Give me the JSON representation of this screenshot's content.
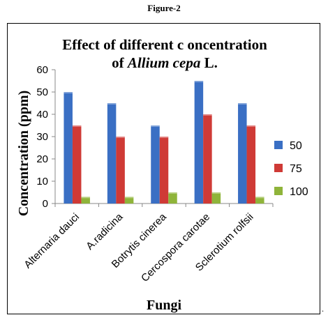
{
  "figure_label": "Figure-2",
  "trailing_mark": ".",
  "chart_data": {
    "type": "bar",
    "title_line1": "Effect of different c oncentration",
    "title_line2_pre": "of ",
    "title_line2_italic": "Allium cepa",
    "title_line2_post": " L.",
    "xlabel": "Fungi",
    "ylabel": "Concentration (ppm)",
    "ylim": [
      0,
      60
    ],
    "yticks": [
      0,
      10,
      20,
      30,
      40,
      50,
      60
    ],
    "grid": false,
    "legend_position": "right",
    "categories": [
      "Alternaria dauci",
      "A.radicina",
      "Botrytis cinerea",
      "Cercospora carotae",
      "Sclerotium rolfsii"
    ],
    "series": [
      {
        "name": "50",
        "color": "#3a6fc4",
        "values": [
          50,
          45,
          35,
          55,
          45
        ]
      },
      {
        "name": "75",
        "color": "#cf3a36",
        "values": [
          35,
          30,
          30,
          40,
          35
        ]
      },
      {
        "name": "100",
        "color": "#8fb43a",
        "values": [
          3,
          3,
          5,
          5,
          3
        ]
      }
    ]
  }
}
